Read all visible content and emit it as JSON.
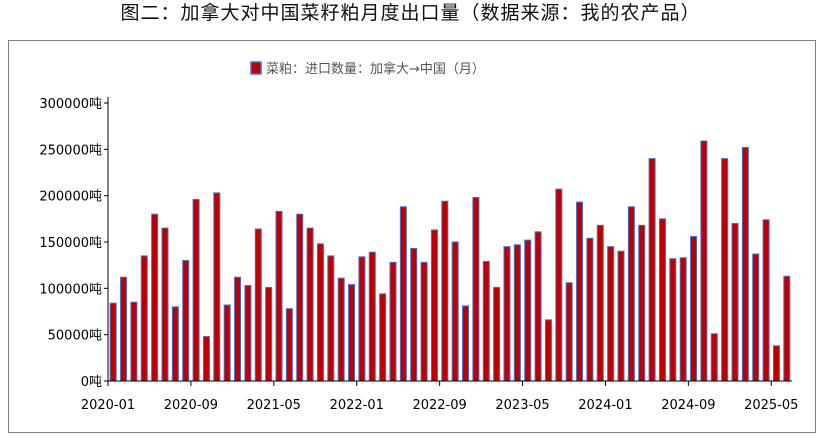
{
  "page": {
    "title": "图二：加拿大对中国菜籽粕月度出口量（数据来源：我的农产品）"
  },
  "chart_data": {
    "type": "bar",
    "title": "",
    "xlabel": "",
    "ylabel": "",
    "y_unit": "吨",
    "ylim": [
      0,
      300000
    ],
    "y_ticks": [
      0,
      50000,
      100000,
      150000,
      200000,
      250000,
      300000
    ],
    "y_tick_labels": [
      "0吨",
      "50000吨",
      "100000吨",
      "150000吨",
      "200000吨",
      "250000吨",
      "300000吨"
    ],
    "x_tick_labels": [
      "2020-01",
      "2020-09",
      "2021-05",
      "2022-01",
      "2022-09",
      "2023-05",
      "2024-01",
      "2024-09",
      "2025-05"
    ],
    "x_tick_every": 8,
    "grid": false,
    "legend_position": "top-center",
    "series": [
      {
        "name": "菜粕：进口数量：加拿大→中国（月）",
        "color": "#c00000",
        "edge_color": "#4472c4",
        "categories": [
          "2020-01",
          "2020-02",
          "2020-03",
          "2020-04",
          "2020-05",
          "2020-06",
          "2020-07",
          "2020-08",
          "2020-09",
          "2020-10",
          "2020-11",
          "2020-12",
          "2021-01",
          "2021-02",
          "2021-03",
          "2021-04",
          "2021-05",
          "2021-06",
          "2021-07",
          "2021-08",
          "2021-09",
          "2021-10",
          "2021-11",
          "2021-12",
          "2022-01",
          "2022-02",
          "2022-03",
          "2022-04",
          "2022-05",
          "2022-06",
          "2022-07",
          "2022-08",
          "2022-09",
          "2022-10",
          "2022-11",
          "2022-12",
          "2023-01",
          "2023-02",
          "2023-03",
          "2023-04",
          "2023-05",
          "2023-06",
          "2023-07",
          "2023-08",
          "2023-09",
          "2023-10",
          "2023-11",
          "2023-12",
          "2024-01",
          "2024-02",
          "2024-03",
          "2024-04",
          "2024-05",
          "2024-06",
          "2024-07",
          "2024-08",
          "2024-09",
          "2024-10",
          "2024-11",
          "2024-12",
          "2025-01",
          "2025-02",
          "2025-03",
          "2025-04",
          "2025-05",
          "2025-06"
        ],
        "values": [
          84000,
          112000,
          85000,
          135000,
          180000,
          165000,
          80000,
          130000,
          196000,
          48000,
          203000,
          82000,
          112000,
          103000,
          164000,
          101000,
          183000,
          78000,
          180000,
          165000,
          148000,
          135000,
          111000,
          104000,
          134000,
          139000,
          94000,
          128000,
          188000,
          143000,
          128000,
          163000,
          194000,
          150000,
          81000,
          198000,
          129000,
          101000,
          145000,
          147000,
          152000,
          161000,
          66000,
          207000,
          106000,
          193000,
          154000,
          168000,
          145000,
          140000,
          188000,
          168000,
          240000,
          175000,
          132000,
          133000,
          156000,
          259000,
          51000,
          240000,
          170000,
          252000,
          137000,
          174000,
          38000,
          113000
        ]
      }
    ]
  }
}
